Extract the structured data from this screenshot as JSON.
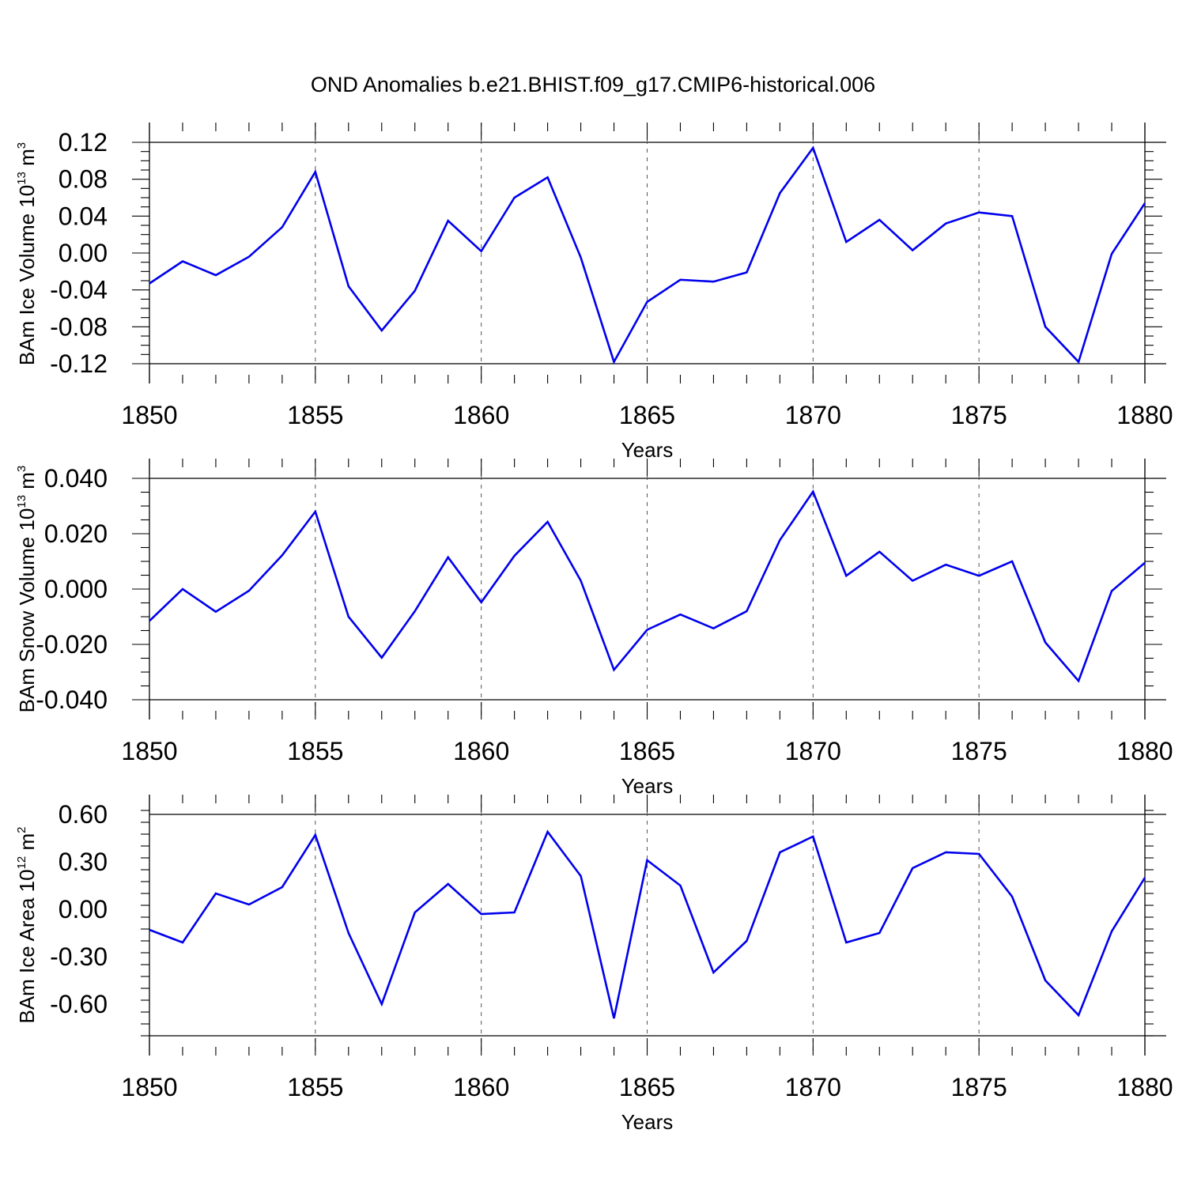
{
  "title": "OND Anomalies b.e21.BHIST.f09_g17.CMIP6-historical.006",
  "line_color": "#0000ee",
  "chart_data": [
    {
      "type": "line",
      "ylabel": {
        "main": "BAm Ice Volume 10",
        "exp": "13",
        "unit": " m",
        "unit_exp": "3"
      },
      "xlabel": "Years",
      "xlim": [
        1850,
        1880
      ],
      "ylim": [
        -0.12,
        0.12
      ],
      "frame_range": [
        -0.12,
        0.12
      ],
      "yticks": [
        -0.12,
        -0.08,
        -0.04,
        0.0,
        0.04,
        0.08,
        0.12
      ],
      "ytick_labels": [
        "-0.12",
        "-0.08",
        "-0.04",
        "0.00",
        "0.04",
        "0.08",
        "0.12"
      ],
      "xticks": [
        1850,
        1855,
        1860,
        1865,
        1870,
        1875,
        1880
      ],
      "xtick_labels": [
        "1850",
        "1855",
        "1860",
        "1865",
        "1870",
        "1875",
        "1880"
      ],
      "grid": "dashed vertical at major x ticks",
      "x": [
        1850,
        1851,
        1852,
        1853,
        1854,
        1855,
        1856,
        1857,
        1858,
        1859,
        1860,
        1861,
        1862,
        1863,
        1864,
        1865,
        1866,
        1867,
        1868,
        1869,
        1870,
        1871,
        1872,
        1873,
        1874,
        1875,
        1876,
        1877,
        1878,
        1879,
        1880
      ],
      "values": [
        -0.033,
        -0.009,
        -0.024,
        -0.004,
        0.028,
        0.088,
        -0.036,
        -0.084,
        -0.041,
        0.035,
        0.002,
        0.06,
        0.082,
        -0.005,
        -0.118,
        -0.053,
        -0.029,
        -0.031,
        -0.021,
        0.065,
        0.114,
        0.012,
        0.036,
        0.003,
        0.032,
        0.044,
        0.04,
        -0.08,
        -0.118,
        -0.001,
        0.054
      ]
    },
    {
      "type": "line",
      "ylabel": {
        "main": "BAm Snow Volume 10",
        "exp": "13",
        "unit": " m",
        "unit_exp": "3"
      },
      "xlabel": "Years",
      "xlim": [
        1850,
        1880
      ],
      "ylim": [
        -0.04,
        0.04
      ],
      "frame_range": [
        -0.04,
        0.04
      ],
      "yticks": [
        -0.04,
        -0.02,
        0.0,
        0.02,
        0.04
      ],
      "ytick_labels": [
        "-0.040",
        "-0.020",
        "0.000",
        "0.020",
        "0.040"
      ],
      "xticks": [
        1850,
        1855,
        1860,
        1865,
        1870,
        1875,
        1880
      ],
      "xtick_labels": [
        "1850",
        "1855",
        "1860",
        "1865",
        "1870",
        "1875",
        "1880"
      ],
      "grid": "dashed vertical at major x ticks",
      "x": [
        1850,
        1851,
        1852,
        1853,
        1854,
        1855,
        1856,
        1857,
        1858,
        1859,
        1860,
        1861,
        1862,
        1863,
        1864,
        1865,
        1866,
        1867,
        1868,
        1869,
        1870,
        1871,
        1872,
        1873,
        1874,
        1875,
        1876,
        1877,
        1878,
        1879,
        1880
      ],
      "values": [
        -0.0115,
        0.0,
        -0.0082,
        -0.0006,
        0.0122,
        0.028,
        -0.01,
        -0.0248,
        -0.008,
        0.0115,
        -0.0048,
        0.012,
        0.0243,
        0.003,
        -0.0292,
        -0.0147,
        -0.0092,
        -0.0142,
        -0.008,
        0.0177,
        0.0352,
        0.0048,
        0.0135,
        0.003,
        0.0088,
        0.0048,
        0.01,
        -0.0193,
        -0.0332,
        -0.0007,
        0.0095
      ]
    },
    {
      "type": "line",
      "ylabel": {
        "main": "BAm Ice Area 10",
        "exp": "12",
        "unit": " m",
        "unit_exp": "2"
      },
      "xlabel": "Years",
      "xlim": [
        1850,
        1880
      ],
      "ylim": [
        -0.8,
        0.6
      ],
      "frame_range": [
        -0.8,
        0.6
      ],
      "yticks": [
        -0.6,
        -0.3,
        0.0,
        0.3,
        0.6
      ],
      "ytick_labels": [
        "-0.60",
        "-0.30",
        "0.00",
        "0.30",
        "0.60"
      ],
      "xticks": [
        1850,
        1855,
        1860,
        1865,
        1870,
        1875,
        1880
      ],
      "xtick_labels": [
        "1850",
        "1855",
        "1860",
        "1865",
        "1870",
        "1875",
        "1880"
      ],
      "grid": "dashed vertical at major x ticks",
      "x": [
        1850,
        1851,
        1852,
        1853,
        1854,
        1855,
        1856,
        1857,
        1858,
        1859,
        1860,
        1861,
        1862,
        1863,
        1864,
        1865,
        1866,
        1867,
        1868,
        1869,
        1870,
        1871,
        1872,
        1873,
        1874,
        1875,
        1876,
        1877,
        1878,
        1879,
        1880
      ],
      "values": [
        -0.13,
        -0.21,
        0.1,
        0.03,
        0.14,
        0.47,
        -0.15,
        -0.6,
        -0.02,
        0.16,
        -0.03,
        -0.02,
        0.49,
        0.21,
        -0.69,
        0.31,
        0.15,
        -0.4,
        -0.2,
        0.36,
        0.46,
        -0.21,
        -0.15,
        0.26,
        0.36,
        0.35,
        0.08,
        -0.45,
        -0.67,
        -0.14,
        0.2
      ]
    }
  ]
}
